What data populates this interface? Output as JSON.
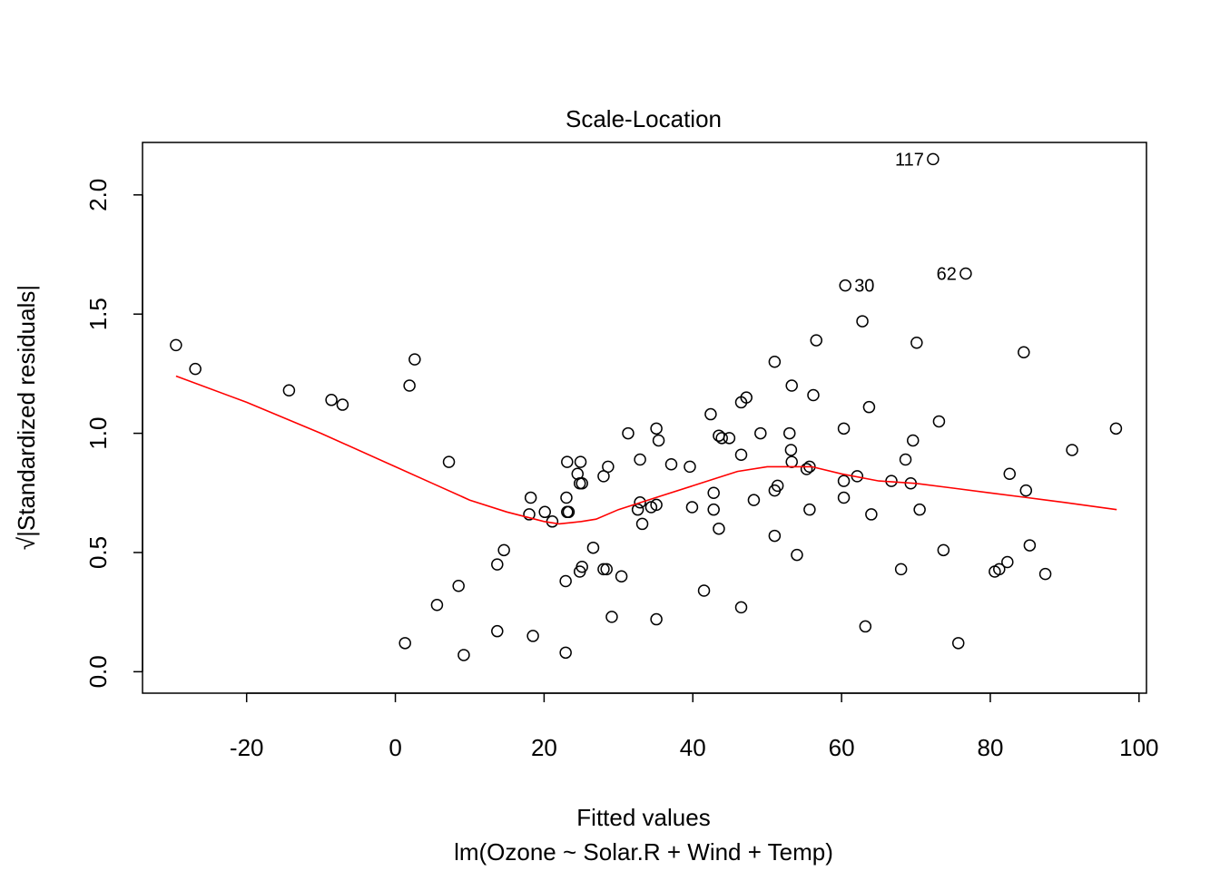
{
  "chart_data": {
    "type": "scatter",
    "title": "Scale-Location",
    "xlabel": "Fitted values",
    "subtitle": "lm(Ozone ~ Solar.R + Wind + Temp)",
    "ylabel": "√|Standardized residuals|",
    "xlim": [
      -34,
      101
    ],
    "ylim": [
      -0.09,
      2.22
    ],
    "xticks": [
      -20,
      0,
      20,
      40,
      60,
      80,
      100
    ],
    "xtick_labels": [
      "-20",
      "0",
      "20",
      "40",
      "60",
      "80",
      "100"
    ],
    "yticks": [
      0.0,
      0.5,
      1.0,
      1.5,
      2.0
    ],
    "ytick_labels": [
      "0.0",
      "0.5",
      "1.0",
      "1.5",
      "2.0"
    ],
    "grid": false,
    "points": [
      {
        "x": -29.5,
        "y": 1.37
      },
      {
        "x": -26.9,
        "y": 1.27
      },
      {
        "x": -14.3,
        "y": 1.18
      },
      {
        "x": -8.6,
        "y": 1.14
      },
      {
        "x": -7.1,
        "y": 1.12
      },
      {
        "x": 1.9,
        "y": 1.2
      },
      {
        "x": 2.6,
        "y": 1.31
      },
      {
        "x": 7.2,
        "y": 0.88
      },
      {
        "x": 1.3,
        "y": 0.12
      },
      {
        "x": 5.6,
        "y": 0.28
      },
      {
        "x": 8.5,
        "y": 0.36
      },
      {
        "x": 9.2,
        "y": 0.07
      },
      {
        "x": 13.7,
        "y": 0.45
      },
      {
        "x": 14.6,
        "y": 0.51
      },
      {
        "x": 13.7,
        "y": 0.17
      },
      {
        "x": 18.2,
        "y": 0.73
      },
      {
        "x": 18.0,
        "y": 0.66
      },
      {
        "x": 18.5,
        "y": 0.15
      },
      {
        "x": 20.1,
        "y": 0.67
      },
      {
        "x": 21.1,
        "y": 0.63
      },
      {
        "x": 23.1,
        "y": 0.88
      },
      {
        "x": 23.0,
        "y": 0.73
      },
      {
        "x": 23.1,
        "y": 0.67
      },
      {
        "x": 23.3,
        "y": 0.67
      },
      {
        "x": 22.9,
        "y": 0.38
      },
      {
        "x": 22.9,
        "y": 0.08
      },
      {
        "x": 24.5,
        "y": 0.83
      },
      {
        "x": 24.9,
        "y": 0.88
      },
      {
        "x": 24.8,
        "y": 0.79
      },
      {
        "x": 25.1,
        "y": 0.79
      },
      {
        "x": 24.8,
        "y": 0.42
      },
      {
        "x": 25.1,
        "y": 0.44
      },
      {
        "x": 26.6,
        "y": 0.52
      },
      {
        "x": 28.0,
        "y": 0.82
      },
      {
        "x": 28.6,
        "y": 0.86
      },
      {
        "x": 28.0,
        "y": 0.43
      },
      {
        "x": 28.4,
        "y": 0.43
      },
      {
        "x": 29.1,
        "y": 0.23
      },
      {
        "x": 30.4,
        "y": 0.4
      },
      {
        "x": 31.3,
        "y": 1.0
      },
      {
        "x": 32.9,
        "y": 0.89
      },
      {
        "x": 32.9,
        "y": 0.71
      },
      {
        "x": 32.6,
        "y": 0.68
      },
      {
        "x": 33.2,
        "y": 0.62
      },
      {
        "x": 34.4,
        "y": 0.69
      },
      {
        "x": 35.1,
        "y": 1.02
      },
      {
        "x": 35.4,
        "y": 0.97
      },
      {
        "x": 35.1,
        "y": 0.7
      },
      {
        "x": 35.1,
        "y": 0.22
      },
      {
        "x": 37.1,
        "y": 0.87
      },
      {
        "x": 39.6,
        "y": 0.86
      },
      {
        "x": 39.9,
        "y": 0.69
      },
      {
        "x": 41.5,
        "y": 0.34
      },
      {
        "x": 42.4,
        "y": 1.08
      },
      {
        "x": 42.8,
        "y": 0.75
      },
      {
        "x": 42.8,
        "y": 0.68
      },
      {
        "x": 43.5,
        "y": 0.99
      },
      {
        "x": 43.9,
        "y": 0.98
      },
      {
        "x": 43.5,
        "y": 0.6
      },
      {
        "x": 44.9,
        "y": 0.98
      },
      {
        "x": 46.5,
        "y": 1.13
      },
      {
        "x": 47.2,
        "y": 1.15
      },
      {
        "x": 46.5,
        "y": 0.91
      },
      {
        "x": 46.5,
        "y": 0.27
      },
      {
        "x": 48.2,
        "y": 0.72
      },
      {
        "x": 49.1,
        "y": 1.0
      },
      {
        "x": 51.0,
        "y": 1.3
      },
      {
        "x": 51.0,
        "y": 0.76
      },
      {
        "x": 51.4,
        "y": 0.78
      },
      {
        "x": 51.0,
        "y": 0.57
      },
      {
        "x": 53.0,
        "y": 1.0
      },
      {
        "x": 53.2,
        "y": 0.93
      },
      {
        "x": 53.3,
        "y": 1.2
      },
      {
        "x": 53.3,
        "y": 0.88
      },
      {
        "x": 54.0,
        "y": 0.49
      },
      {
        "x": 55.3,
        "y": 0.85
      },
      {
        "x": 55.7,
        "y": 0.86
      },
      {
        "x": 56.2,
        "y": 1.16
      },
      {
        "x": 56.6,
        "y": 1.39
      },
      {
        "x": 55.7,
        "y": 0.68
      },
      {
        "x": 60.5,
        "y": 1.62
      },
      {
        "x": 60.3,
        "y": 1.02
      },
      {
        "x": 60.3,
        "y": 0.8
      },
      {
        "x": 62.1,
        "y": 0.82
      },
      {
        "x": 60.3,
        "y": 0.73
      },
      {
        "x": 62.8,
        "y": 1.47
      },
      {
        "x": 63.7,
        "y": 1.11
      },
      {
        "x": 64.0,
        "y": 0.66
      },
      {
        "x": 63.2,
        "y": 0.19
      },
      {
        "x": 66.7,
        "y": 0.8
      },
      {
        "x": 68.0,
        "y": 0.43
      },
      {
        "x": 68.6,
        "y": 0.89
      },
      {
        "x": 69.3,
        "y": 0.79
      },
      {
        "x": 69.6,
        "y": 0.97
      },
      {
        "x": 70.1,
        "y": 1.38
      },
      {
        "x": 70.5,
        "y": 0.68
      },
      {
        "x": 72.3,
        "y": 2.15
      },
      {
        "x": 73.1,
        "y": 1.05
      },
      {
        "x": 73.7,
        "y": 0.51
      },
      {
        "x": 75.7,
        "y": 0.12
      },
      {
        "x": 76.7,
        "y": 1.67
      },
      {
        "x": 80.6,
        "y": 0.42
      },
      {
        "x": 81.2,
        "y": 0.43
      },
      {
        "x": 82.3,
        "y": 0.46
      },
      {
        "x": 82.6,
        "y": 0.83
      },
      {
        "x": 84.5,
        "y": 1.34
      },
      {
        "x": 84.8,
        "y": 0.76
      },
      {
        "x": 85.3,
        "y": 0.53
      },
      {
        "x": 87.4,
        "y": 0.41
      },
      {
        "x": 91.0,
        "y": 0.93
      },
      {
        "x": 96.9,
        "y": 1.02
      }
    ],
    "point_labels": [
      {
        "text": "117",
        "x": 72.3,
        "y": 2.15,
        "side": "left"
      },
      {
        "text": "62",
        "x": 76.7,
        "y": 1.67,
        "side": "left"
      },
      {
        "text": "30",
        "x": 60.5,
        "y": 1.62,
        "side": "right"
      }
    ],
    "smooth_line": {
      "color": "#ff0000",
      "x": [
        -29.5,
        -20,
        -10,
        0,
        5,
        10,
        15,
        20,
        22,
        25,
        27,
        30,
        35,
        40,
        43,
        46,
        50,
        53,
        56,
        60,
        65,
        70,
        75,
        80,
        85,
        90,
        97
      ],
      "y": [
        1.24,
        1.13,
        1.0,
        0.86,
        0.79,
        0.72,
        0.67,
        0.63,
        0.62,
        0.63,
        0.64,
        0.68,
        0.73,
        0.78,
        0.81,
        0.84,
        0.86,
        0.86,
        0.86,
        0.83,
        0.8,
        0.79,
        0.77,
        0.75,
        0.73,
        0.71,
        0.68
      ]
    }
  }
}
